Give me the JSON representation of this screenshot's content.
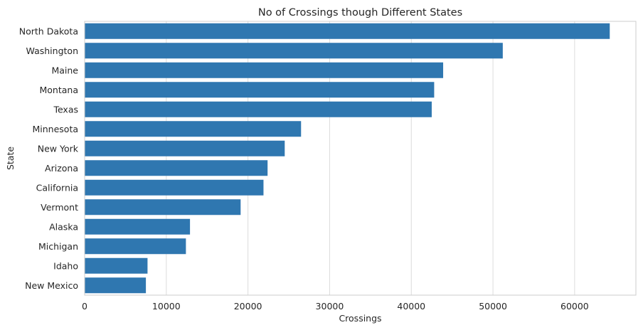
{
  "chart_data": {
    "type": "bar",
    "orientation": "horizontal",
    "title": "No of Crossings though Different States",
    "xlabel": "Crossings",
    "ylabel": "State",
    "categories": [
      "North Dakota",
      "Washington",
      "Maine",
      "Montana",
      "Texas",
      "Minnesota",
      "New York",
      "Arizona",
      "California",
      "Vermont",
      "Alaska",
      "Michigan",
      "Idaho",
      "New Mexico"
    ],
    "values": [
      64300,
      51200,
      43900,
      42800,
      42500,
      26500,
      24500,
      22400,
      21900,
      19100,
      12900,
      12400,
      7700,
      7500
    ],
    "xlim": [
      0,
      67500
    ],
    "xticks": [
      0,
      10000,
      20000,
      30000,
      40000,
      50000,
      60000
    ],
    "xtick_labels": [
      "0",
      "10000",
      "20000",
      "30000",
      "40000",
      "50000",
      "60000"
    ],
    "grid": true,
    "bar_color": "#2f77b0"
  }
}
